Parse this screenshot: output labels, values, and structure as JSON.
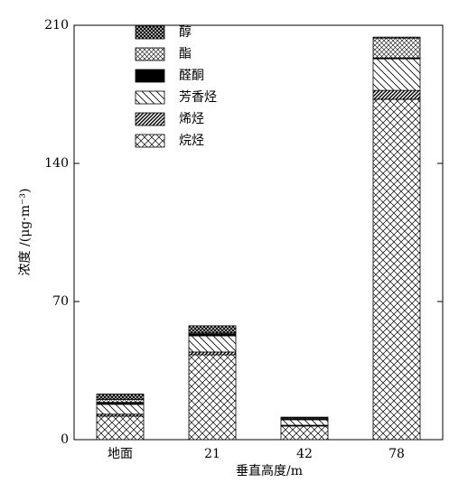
{
  "chart_data": {
    "type": "stacked_bar",
    "xlabel": "垂直高度/m",
    "ylabel": "浓度 /(μg·m⁻³)",
    "categories": [
      "地面",
      "21",
      "42",
      "78"
    ],
    "series": [
      {
        "name": "烷烃",
        "color": "#000000",
        "values": [
          11.9,
          43,
          6.9,
          172.5
        ]
      },
      {
        "name": "烯烃",
        "color": "#000000",
        "values": [
          1,
          1.4,
          0.4,
          4.5
        ]
      },
      {
        "name": "芳香烃",
        "color": "#000000",
        "values": [
          5,
          8.2,
          2.8,
          16
        ]
      },
      {
        "name": "醛酮",
        "color": "#000000",
        "values": [
          1,
          1,
          0.4,
          0.5
        ]
      },
      {
        "name": "酯",
        "color": "#000000",
        "values": [
          1.5,
          0.5,
          0.5,
          10
        ]
      },
      {
        "name": "醇",
        "color": "#000000",
        "values": [
          2.7,
          3.6,
          0.4,
          0.5
        ]
      }
    ],
    "ylim": [
      0,
      210
    ],
    "yticks": [
      0,
      70,
      140,
      210
    ],
    "grid": false
  }
}
